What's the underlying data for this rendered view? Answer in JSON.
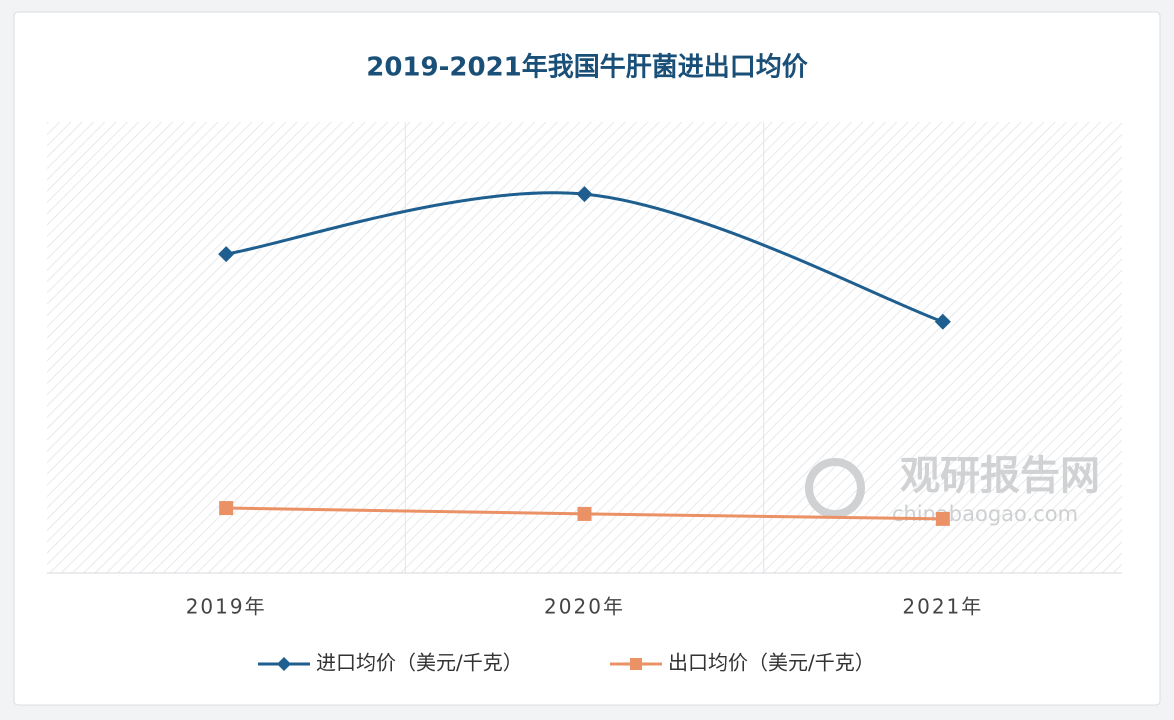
{
  "chart_data": {
    "type": "line",
    "title": "2019-2021年我国牛肝菌进出口均价",
    "categories": [
      "2019年",
      "2020年",
      "2021年"
    ],
    "series": [
      {
        "name": "进口均价（美元/千克）",
        "color": "#1f5f8f",
        "marker": "diamond",
        "smooth": true,
        "values": [
          70.7,
          84.0,
          55.7
        ]
      },
      {
        "name": "出口均价（美元/千克）",
        "color": "#eb9166",
        "marker": "square",
        "smooth": false,
        "values": [
          14.4,
          13.1,
          12.0
        ]
      }
    ],
    "ylim": [
      0,
      100
    ],
    "legend": "bottom",
    "watermark": {
      "name": "观研报告网",
      "url": "chinabaogao.com"
    }
  }
}
